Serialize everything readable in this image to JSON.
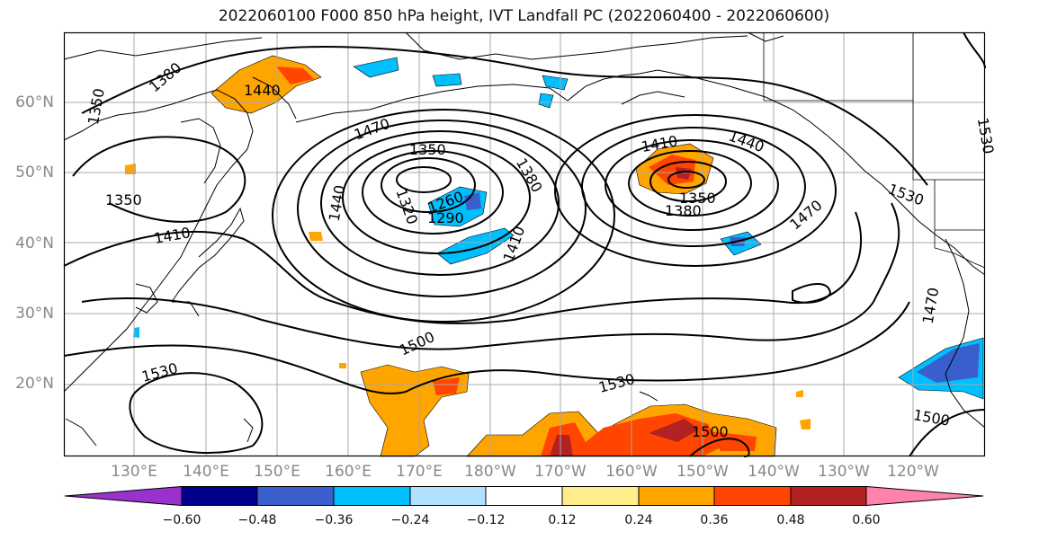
{
  "title": "2022060100 F000 850 hPa height, IVT Landfall PC (2022060400 - 2022060600)",
  "lat_labels": [
    "60°N",
    "50°N",
    "40°N",
    "30°N",
    "20°N"
  ],
  "lon_labels": [
    "130°E",
    "140°E",
    "150°E",
    "160°E",
    "170°E",
    "180°W",
    "170°W",
    "160°W",
    "150°W",
    "140°W",
    "130°W",
    "120°W"
  ],
  "contour_labels": [
    "1380",
    "1350",
    "1440",
    "1470",
    "1350",
    "1380",
    "1320",
    "1260",
    "1290",
    "1440",
    "1410",
    "1350",
    "1410",
    "1410",
    "1440",
    "1380",
    "1350",
    "1470",
    "1530",
    "1500",
    "1530",
    "1530",
    "1500",
    "1500",
    "1470",
    "1530"
  ],
  "colorbar": {
    "ticks": [
      "−0.60",
      "−0.48",
      "−0.36",
      "−0.24",
      "−0.12",
      "0.12",
      "0.24",
      "0.36",
      "0.48",
      "0.60"
    ],
    "colors": [
      "#9932cc",
      "#00008b",
      "#3a5fcd",
      "#00bfff",
      "#b0e2ff",
      "#ffffff",
      "#ffec8b",
      "#ffa500",
      "#ff4500",
      "#b22222",
      "#ff82ab"
    ]
  }
}
